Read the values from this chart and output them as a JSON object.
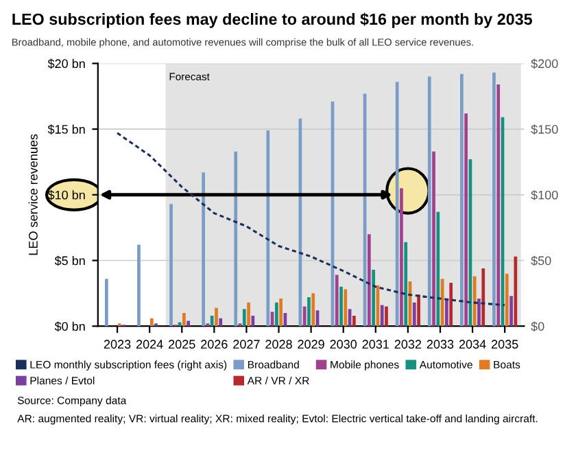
{
  "chart_data": {
    "type": "bar",
    "title": "LEO subscription fees may decline to around $16 per month by 2035",
    "subtitle": "Broadband, mobile phone, and automotive revenues will comprise the bulk of all LEO service revenues.",
    "ylabel": "LEO service revenues",
    "categories": [
      "2023",
      "2024",
      "2025",
      "2026",
      "2027",
      "2028",
      "2029",
      "2030",
      "2031",
      "2032",
      "2033",
      "2034",
      "2035"
    ],
    "series": [
      {
        "name": "LEO monthly subscription fees (right axis)",
        "type": "line",
        "axis": "y2",
        "line_style": "dashed",
        "color": "#1a2f5a",
        "values": [
          147,
          130,
          106,
          86,
          76,
          61,
          53,
          42,
          30,
          24,
          21,
          18,
          16
        ]
      },
      {
        "name": "Broadband",
        "color": "#7a9cc6",
        "values": [
          3.6,
          6.2,
          9.3,
          11.7,
          13.3,
          14.9,
          15.8,
          17.1,
          17.7,
          18.6,
          19.0,
          19.2,
          19.3
        ]
      },
      {
        "name": "Mobile phones",
        "color": "#a0418f",
        "values": [
          0,
          0,
          0.1,
          0.2,
          0.2,
          1.1,
          1.5,
          3.9,
          7.0,
          10.5,
          13.3,
          16.2,
          18.4
        ]
      },
      {
        "name": "Automotive",
        "color": "#17917f",
        "values": [
          0,
          0,
          0.3,
          0.8,
          1.3,
          1.8,
          2.2,
          3.0,
          4.3,
          6.4,
          8.7,
          12.7,
          15.9
        ]
      },
      {
        "name": "Boats",
        "color": "#e07b24",
        "values": [
          0.2,
          0.6,
          1.0,
          1.4,
          1.8,
          2.1,
          2.5,
          2.8,
          3.1,
          3.4,
          3.6,
          3.8,
          4.0
        ]
      },
      {
        "name": "Planes / Evtol",
        "color": "#7b3fa0",
        "values": [
          0.1,
          0.2,
          0.4,
          0.6,
          0.8,
          1.0,
          1.2,
          1.3,
          1.6,
          1.8,
          2.0,
          2.1,
          2.3
        ]
      },
      {
        "name": "AR / VR / XR",
        "color": "#b52a2f",
        "values": [
          0,
          0,
          0,
          0,
          0,
          0,
          0,
          0.8,
          1.5,
          2.4,
          3.3,
          4.4,
          5.3
        ]
      }
    ],
    "ylim": [
      0,
      20
    ],
    "yticks": [
      {
        "value": 0,
        "label": "$0 bn"
      },
      {
        "value": 5,
        "label": "$5 bn"
      },
      {
        "value": 10,
        "label": "$10 bn"
      },
      {
        "value": 15,
        "label": "$15 bn"
      },
      {
        "value": 20,
        "label": "$20 bn"
      }
    ],
    "y2lim": [
      0,
      200
    ],
    "y2ticks": [
      {
        "value": 0,
        "label": "$0"
      },
      {
        "value": 50,
        "label": "$50"
      },
      {
        "value": 100,
        "label": "$100"
      },
      {
        "value": 150,
        "label": "$150"
      },
      {
        "value": 200,
        "label": "$200"
      }
    ],
    "bands": [
      {
        "axis": "x",
        "from": "2025",
        "to": "2035",
        "label": "Forecast",
        "color": "#e3e3e3"
      }
    ],
    "grid": "y",
    "legend": "bottom",
    "annotations": [
      "Source: Company data",
      "AR: augmented reality; VR: virtual reality; XR: mixed reality; Evtol: Electric vertical take-off and landing aircraft."
    ]
  }
}
